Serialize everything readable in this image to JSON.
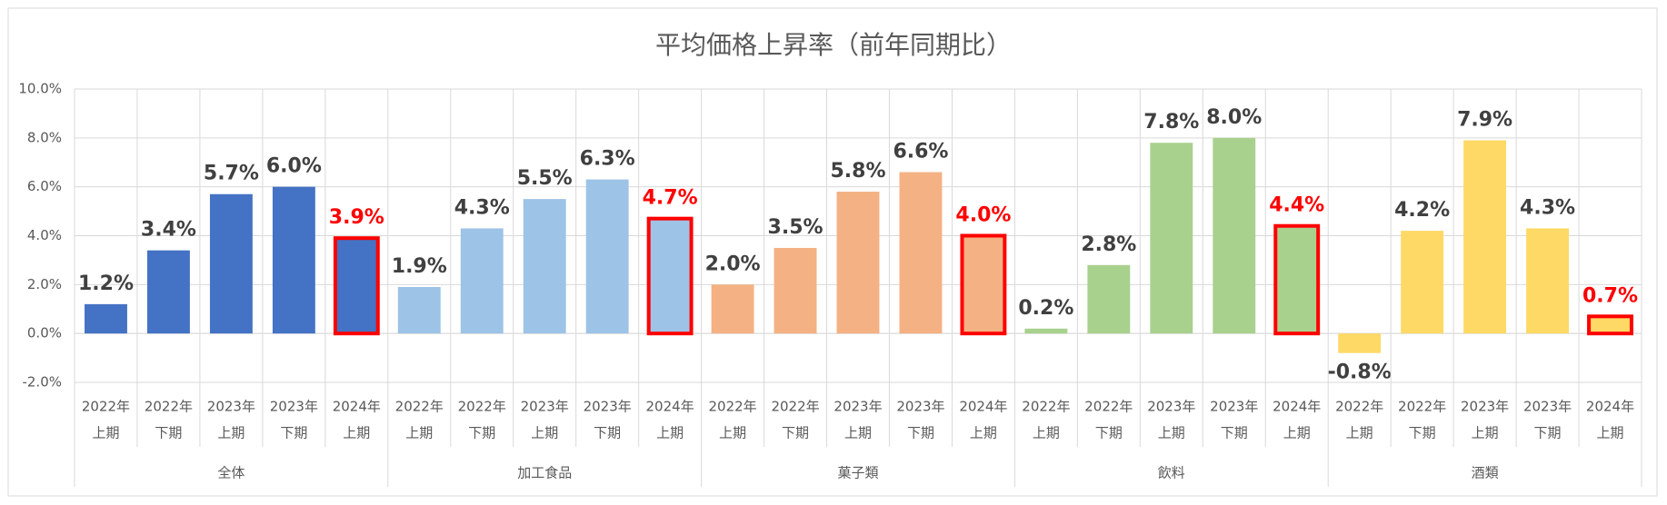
{
  "chart_data": {
    "type": "bar",
    "title": "平均価格上昇率（前年同期比）",
    "ylim": [
      -2,
      10
    ],
    "yticks": [
      {
        "value": -2,
        "label": "-2.0%"
      },
      {
        "value": 0,
        "label": "0.0%"
      },
      {
        "value": 2,
        "label": "2.0%"
      },
      {
        "value": 4,
        "label": "4.0%"
      },
      {
        "value": 6,
        "label": "6.0%"
      },
      {
        "value": 8,
        "label": "8.0%"
      },
      {
        "value": 10,
        "label": "10.0%"
      }
    ],
    "grid": true,
    "highlight_color": "#ff0000",
    "groups": [
      {
        "name": "全体",
        "color": "#4472c4",
        "categories": [
          [
            "2022年",
            "上期"
          ],
          [
            "2022年",
            "下期"
          ],
          [
            "2023年",
            "上期"
          ],
          [
            "2023年",
            "下期"
          ],
          [
            "2024年",
            "上期"
          ]
        ],
        "values": [
          1.2,
          3.4,
          5.7,
          6.0,
          3.9
        ],
        "value_labels": [
          "1.2%",
          "3.4%",
          "5.7%",
          "6.0%",
          "3.9%"
        ]
      },
      {
        "name": "加工食品",
        "color": "#9dc3e6",
        "categories": [
          [
            "2022年",
            "上期"
          ],
          [
            "2022年",
            "下期"
          ],
          [
            "2023年",
            "上期"
          ],
          [
            "2023年",
            "下期"
          ],
          [
            "2024年",
            "上期"
          ]
        ],
        "values": [
          1.9,
          4.3,
          5.5,
          6.3,
          4.7
        ],
        "value_labels": [
          "1.9%",
          "4.3%",
          "5.5%",
          "6.3%",
          "4.7%"
        ]
      },
      {
        "name": "菓子類",
        "color": "#f4b183",
        "categories": [
          [
            "2022年",
            "上期"
          ],
          [
            "2022年",
            "下期"
          ],
          [
            "2023年",
            "上期"
          ],
          [
            "2023年",
            "下期"
          ],
          [
            "2024年",
            "上期"
          ]
        ],
        "values": [
          2.0,
          3.5,
          5.8,
          6.6,
          4.0
        ],
        "value_labels": [
          "2.0%",
          "3.5%",
          "5.8%",
          "6.6%",
          "4.0%"
        ]
      },
      {
        "name": "飲料",
        "color": "#a9d18e",
        "categories": [
          [
            "2022年",
            "上期"
          ],
          [
            "2022年",
            "下期"
          ],
          [
            "2023年",
            "上期"
          ],
          [
            "2023年",
            "下期"
          ],
          [
            "2024年",
            "上期"
          ]
        ],
        "values": [
          0.2,
          2.8,
          7.8,
          8.0,
          4.4
        ],
        "value_labels": [
          "0.2%",
          "2.8%",
          "7.8%",
          "8.0%",
          "4.4%"
        ]
      },
      {
        "name": "酒類",
        "color": "#ffd966",
        "categories": [
          [
            "2022年",
            "上期"
          ],
          [
            "2022年",
            "下期"
          ],
          [
            "2023年",
            "上期"
          ],
          [
            "2023年",
            "下期"
          ],
          [
            "2024年",
            "上期"
          ]
        ],
        "values": [
          -0.8,
          4.2,
          7.9,
          4.3,
          0.7
        ],
        "value_labels": [
          "-0.8%",
          "4.2%",
          "7.9%",
          "4.3%",
          "0.7%"
        ]
      }
    ]
  }
}
